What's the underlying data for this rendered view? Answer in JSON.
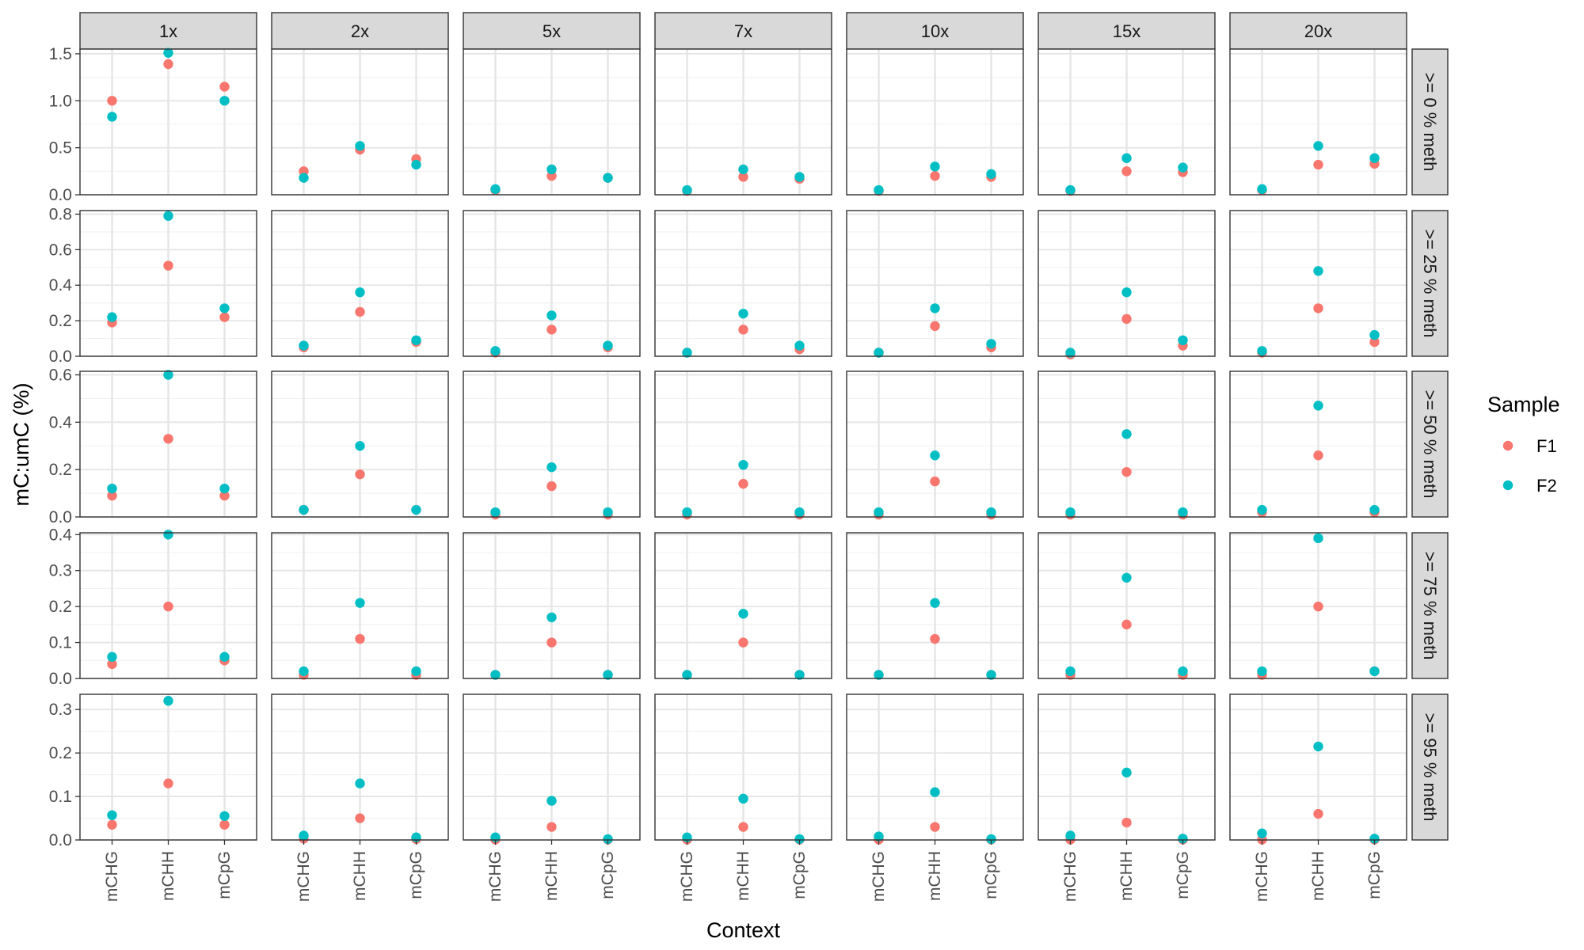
{
  "chart_data": {
    "type": "scatter",
    "layout": "facet_grid",
    "xlabel": "Context",
    "ylabel": "mC:umC (%)",
    "categories": [
      "mCHG",
      "mCHH",
      "mCpG"
    ],
    "col_facets": [
      "1x",
      "2x",
      "5x",
      "7x",
      "10x",
      "15x",
      "20x"
    ],
    "row_facets": [
      {
        "label": ">= 0 % meth",
        "ylim": [
          0,
          1.55
        ],
        "ticks": [
          0.0,
          0.5,
          1.0,
          1.5
        ],
        "tick_labels": [
          "0.0",
          "0.5",
          "1.0",
          "1.5"
        ]
      },
      {
        "label": ">= 25 % meth",
        "ylim": [
          0,
          0.82
        ],
        "ticks": [
          0.0,
          0.2,
          0.4,
          0.6,
          0.8
        ],
        "tick_labels": [
          "0.0",
          "0.2",
          "0.4",
          "0.6",
          "0.8"
        ]
      },
      {
        "label": ">= 50 % meth",
        "ylim": [
          0,
          0.615
        ],
        "ticks": [
          0.0,
          0.2,
          0.4,
          0.6
        ],
        "tick_labels": [
          "0.0",
          "0.2",
          "0.4",
          "0.6"
        ]
      },
      {
        "label": ">= 75 % meth",
        "ylim": [
          0,
          0.405
        ],
        "ticks": [
          0.0,
          0.1,
          0.2,
          0.3,
          0.4
        ],
        "tick_labels": [
          "0.0",
          "0.1",
          "0.2",
          "0.3",
          "0.4"
        ]
      },
      {
        "label": ">= 95 % meth",
        "ylim": [
          0,
          0.335
        ],
        "ticks": [
          0.0,
          0.1,
          0.2,
          0.3
        ],
        "tick_labels": [
          "0.0",
          "0.1",
          "0.2",
          "0.3"
        ]
      }
    ],
    "legend": {
      "title": "Sample",
      "position": "right",
      "entries": [
        {
          "name": "F1",
          "color": "#F8766D"
        },
        {
          "name": "F2",
          "color": "#00BFC4"
        }
      ]
    },
    "series": [
      {
        "name": "F1",
        "color": "#F8766D",
        "values": [
          [
            [
              1.0,
              1.39,
              1.15
            ],
            [
              0.25,
              0.48,
              0.38
            ],
            [
              0.05,
              0.2,
              0.18
            ],
            [
              0.04,
              0.19,
              0.17
            ],
            [
              0.04,
              0.2,
              0.19
            ],
            [
              0.04,
              0.25,
              0.24
            ],
            [
              0.05,
              0.32,
              0.33
            ]
          ],
          [
            [
              0.19,
              0.51,
              0.22
            ],
            [
              0.05,
              0.25,
              0.08
            ],
            [
              0.02,
              0.15,
              0.05
            ],
            [
              0.02,
              0.15,
              0.04
            ],
            [
              0.02,
              0.17,
              0.05
            ],
            [
              0.01,
              0.21,
              0.06
            ],
            [
              0.02,
              0.27,
              0.08
            ]
          ],
          [
            [
              0.09,
              0.33,
              0.09
            ],
            [
              0.03,
              0.18,
              0.03
            ],
            [
              0.01,
              0.13,
              0.01
            ],
            [
              0.01,
              0.14,
              0.01
            ],
            [
              0.01,
              0.15,
              0.01
            ],
            [
              0.01,
              0.19,
              0.01
            ],
            [
              0.02,
              0.26,
              0.02
            ]
          ],
          [
            [
              0.04,
              0.2,
              0.05
            ],
            [
              0.01,
              0.11,
              0.01
            ],
            [
              0.01,
              0.1,
              0.01
            ],
            [
              0.01,
              0.1,
              0.01
            ],
            [
              0.01,
              0.11,
              0.01
            ],
            [
              0.01,
              0.15,
              0.01
            ],
            [
              0.01,
              0.2,
              0.02
            ]
          ],
          [
            [
              0.035,
              0.13,
              0.035
            ],
            [
              0.003,
              0.05,
              0.002
            ],
            [
              0.001,
              0.03,
              0.001
            ],
            [
              0.001,
              0.03,
              0.001
            ],
            [
              0.001,
              0.03,
              0.001
            ],
            [
              0.001,
              0.04,
              0.001
            ],
            [
              0.001,
              0.06,
              0.001
            ]
          ]
        ]
      },
      {
        "name": "F2",
        "color": "#00BFC4",
        "values": [
          [
            [
              0.83,
              1.51,
              1.0
            ],
            [
              0.18,
              0.52,
              0.32
            ],
            [
              0.06,
              0.27,
              0.18
            ],
            [
              0.05,
              0.27,
              0.19
            ],
            [
              0.05,
              0.3,
              0.22
            ],
            [
              0.05,
              0.39,
              0.29
            ],
            [
              0.06,
              0.52,
              0.39
            ]
          ],
          [
            [
              0.22,
              0.79,
              0.27
            ],
            [
              0.06,
              0.36,
              0.09
            ],
            [
              0.03,
              0.23,
              0.06
            ],
            [
              0.02,
              0.24,
              0.06
            ],
            [
              0.02,
              0.27,
              0.07
            ],
            [
              0.02,
              0.36,
              0.09
            ],
            [
              0.03,
              0.48,
              0.12
            ]
          ],
          [
            [
              0.12,
              0.6,
              0.12
            ],
            [
              0.03,
              0.3,
              0.03
            ],
            [
              0.02,
              0.21,
              0.02
            ],
            [
              0.02,
              0.22,
              0.02
            ],
            [
              0.02,
              0.26,
              0.02
            ],
            [
              0.02,
              0.35,
              0.02
            ],
            [
              0.03,
              0.47,
              0.03
            ]
          ],
          [
            [
              0.06,
              0.4,
              0.06
            ],
            [
              0.02,
              0.21,
              0.02
            ],
            [
              0.01,
              0.17,
              0.01
            ],
            [
              0.01,
              0.18,
              0.01
            ],
            [
              0.01,
              0.21,
              0.01
            ],
            [
              0.02,
              0.28,
              0.02
            ],
            [
              0.02,
              0.39,
              0.02
            ]
          ],
          [
            [
              0.057,
              0.32,
              0.055
            ],
            [
              0.01,
              0.13,
              0.006
            ],
            [
              0.006,
              0.09,
              0.002
            ],
            [
              0.006,
              0.095,
              0.002
            ],
            [
              0.008,
              0.11,
              0.002
            ],
            [
              0.01,
              0.155,
              0.003
            ],
            [
              0.015,
              0.215,
              0.003
            ]
          ]
        ]
      }
    ]
  }
}
